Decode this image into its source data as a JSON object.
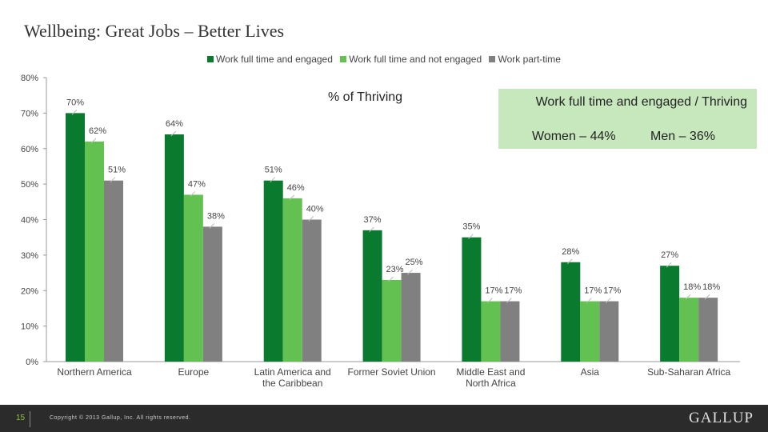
{
  "title": "Wellbeing: Great Jobs – Better Lives",
  "subtitle": "% of Thriving",
  "callout": {
    "title": "Work full time and engaged / Thriving",
    "women": "Women – 44%",
    "men": "Men – 36%",
    "color": "#c7e8bd"
  },
  "footer": {
    "page_number": "15",
    "copyright": "Copyright © 2013 Gallup, Inc. All rights reserved.",
    "logo": "GALLUP"
  },
  "chart_data": {
    "type": "bar",
    "categories": [
      "Northern America",
      "Europe",
      "Latin America and the Caribbean",
      "Former Soviet Union",
      "Middle East and North Africa",
      "Asia",
      "Sub-Saharan Africa"
    ],
    "series": [
      {
        "name": "Work full time and  engaged",
        "color": "#0a7a2f",
        "values": [
          70,
          64,
          51,
          37,
          35,
          28,
          27
        ]
      },
      {
        "name": "Work full time and not engaged",
        "color": "#62c150",
        "values": [
          62,
          47,
          46,
          23,
          17,
          17,
          18
        ]
      },
      {
        "name": "Work part-time",
        "color": "#808080",
        "values": [
          51,
          38,
          40,
          25,
          17,
          17,
          18
        ]
      }
    ],
    "ylim": [
      0,
      80
    ],
    "yticks": [
      "0%",
      "10%",
      "20%",
      "30%",
      "40%",
      "50%",
      "60%",
      "70%",
      "80%"
    ],
    "grid": false,
    "legend": "top-center"
  }
}
